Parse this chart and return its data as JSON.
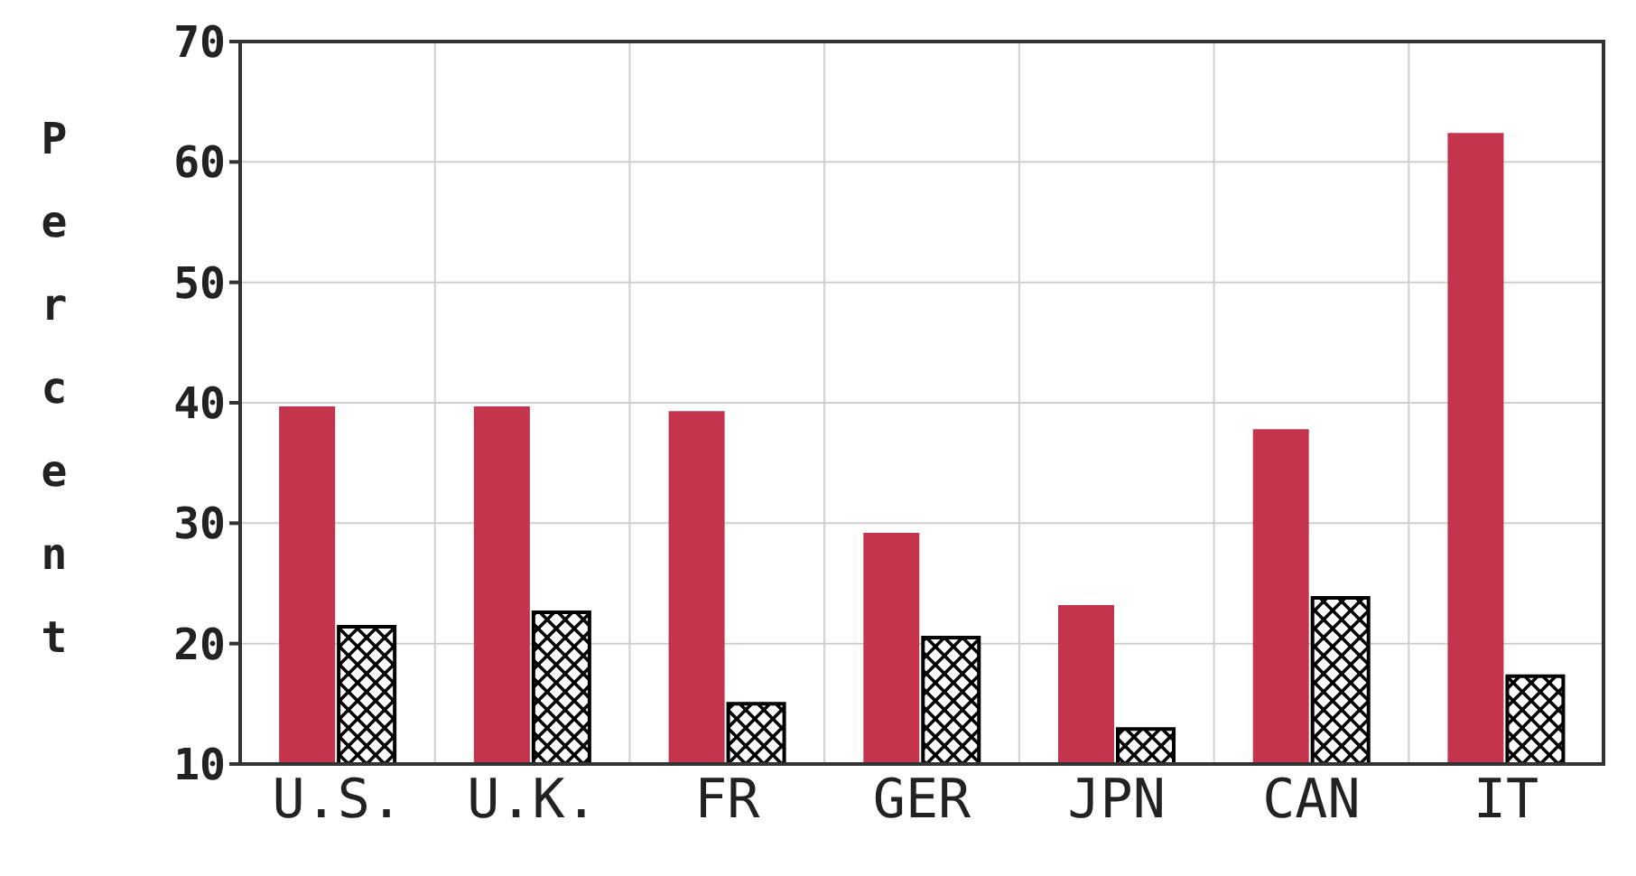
{
  "chart_data": {
    "type": "bar",
    "ylabel": "Percent",
    "categories": [
      "U.S.",
      "U.K.",
      "FR",
      "GER",
      "JPN",
      "CAN",
      "IT"
    ],
    "series": [
      {
        "color": "#c4344c",
        "values": [
          39.7,
          39.7,
          39.3,
          29.2,
          23.2,
          37.8,
          62.4
        ]
      },
      {
        "color": "#000000",
        "values": [
          21.4,
          22.6,
          15,
          20.5,
          12.9,
          23.8,
          17.3
        ]
      }
    ],
    "ylim": [
      10,
      70
    ],
    "yticks": [
      10,
      20,
      30,
      40,
      50,
      60,
      70
    ],
    "grid": true,
    "legend": false
  }
}
